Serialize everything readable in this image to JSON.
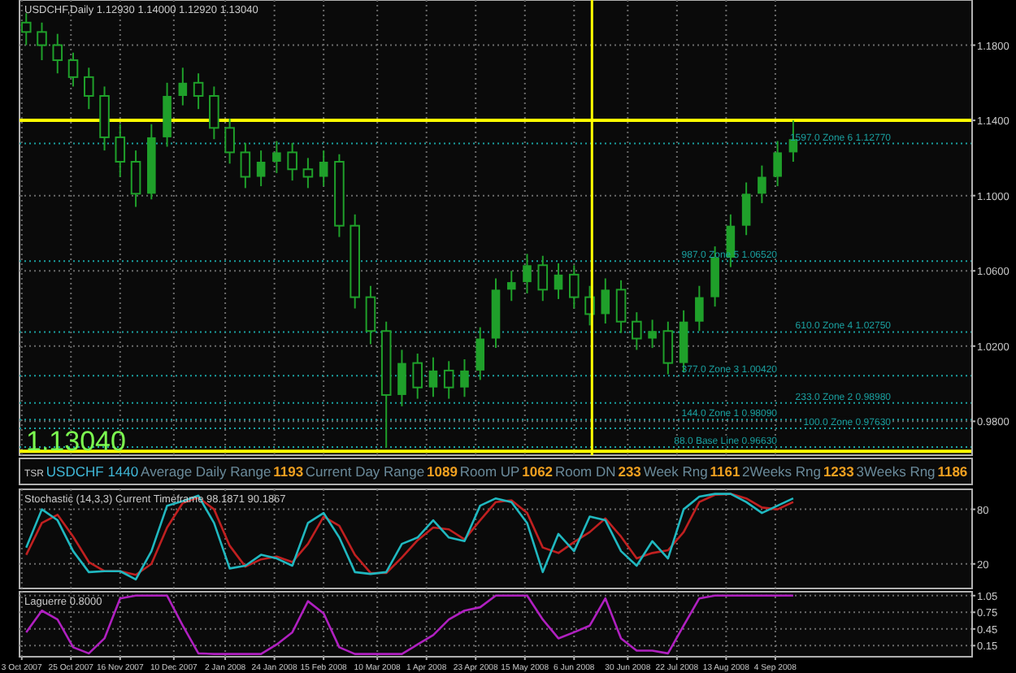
{
  "chart_data": [
    {
      "type": "candlestick",
      "title": "USDCHF,Daily 1.12930 1.14000 1.12920 1.13040",
      "grid": true,
      "tick_labels": "y",
      "color": "#1fa02a",
      "x": [
        "2007-10-05",
        "2007-10-12",
        "2007-10-19",
        "2007-10-26",
        "2007-11-02",
        "2007-11-09",
        "2007-11-16",
        "2007-11-23",
        "2007-11-30",
        "2007-12-07",
        "2007-12-14",
        "2007-12-21",
        "2007-12-28",
        "2008-01-04",
        "2008-01-11",
        "2008-01-18",
        "2008-01-25",
        "2008-02-01",
        "2008-02-08",
        "2008-02-15",
        "2008-02-22",
        "2008-02-29",
        "2008-03-07",
        "2008-03-14",
        "2008-03-21",
        "2008-03-28",
        "2008-04-04",
        "2008-04-11",
        "2008-04-18",
        "2008-04-25",
        "2008-05-02",
        "2008-05-09",
        "2008-05-16",
        "2008-05-23",
        "2008-05-30",
        "2008-06-06",
        "2008-06-13",
        "2008-06-20",
        "2008-06-27",
        "2008-07-04",
        "2008-07-11",
        "2008-07-18",
        "2008-07-25",
        "2008-08-01",
        "2008-08-08",
        "2008-08-15",
        "2008-08-22",
        "2008-08-29",
        "2008-09-05",
        "2008-09-12"
      ],
      "ohlc": [
        [
          1.192,
          1.197,
          1.18,
          1.187
        ],
        [
          1.187,
          1.192,
          1.172,
          1.18
        ],
        [
          1.18,
          1.186,
          1.165,
          1.172
        ],
        [
          1.172,
          1.176,
          1.158,
          1.163
        ],
        [
          1.163,
          1.168,
          1.146,
          1.153
        ],
        [
          1.153,
          1.158,
          1.124,
          1.131
        ],
        [
          1.131,
          1.138,
          1.11,
          1.118
        ],
        [
          1.118,
          1.124,
          1.094,
          1.101
        ],
        [
          1.101,
          1.138,
          1.098,
          1.131
        ],
        [
          1.131,
          1.16,
          1.126,
          1.153
        ],
        [
          1.153,
          1.168,
          1.148,
          1.16
        ],
        [
          1.16,
          1.165,
          1.146,
          1.153
        ],
        [
          1.153,
          1.158,
          1.13,
          1.136
        ],
        [
          1.136,
          1.141,
          1.117,
          1.123
        ],
        [
          1.123,
          1.128,
          1.104,
          1.11
        ],
        [
          1.11,
          1.124,
          1.105,
          1.118
        ],
        [
          1.118,
          1.129,
          1.112,
          1.123
        ],
        [
          1.123,
          1.128,
          1.108,
          1.114
        ],
        [
          1.114,
          1.12,
          1.104,
          1.11
        ],
        [
          1.11,
          1.124,
          1.105,
          1.118
        ],
        [
          1.118,
          1.122,
          1.078,
          1.084
        ],
        [
          1.084,
          1.09,
          1.04,
          1.046
        ],
        [
          1.046,
          1.052,
          1.021,
          1.028
        ],
        [
          1.028,
          1.033,
          0.966,
          0.994
        ],
        [
          0.994,
          1.018,
          0.988,
          1.011
        ],
        [
          1.011,
          1.016,
          0.992,
          0.998
        ],
        [
          0.998,
          1.014,
          0.993,
          1.007
        ],
        [
          1.007,
          1.012,
          0.992,
          0.998
        ],
        [
          0.998,
          1.013,
          0.993,
          1.007
        ],
        [
          1.007,
          1.03,
          1.002,
          1.024
        ],
        [
          1.024,
          1.056,
          1.019,
          1.05
        ],
        [
          1.05,
          1.06,
          1.044,
          1.054
        ],
        [
          1.054,
          1.069,
          1.048,
          1.063
        ],
        [
          1.063,
          1.068,
          1.044,
          1.05
        ],
        [
          1.05,
          1.064,
          1.045,
          1.058
        ],
        [
          1.058,
          1.063,
          1.04,
          1.046
        ],
        [
          1.046,
          1.052,
          1.031,
          1.037
        ],
        [
          1.037,
          1.056,
          1.032,
          1.05
        ],
        [
          1.05,
          1.055,
          1.027,
          1.033
        ],
        [
          1.033,
          1.038,
          1.018,
          1.024
        ],
        [
          1.024,
          1.034,
          1.019,
          1.028
        ],
        [
          1.028,
          1.033,
          1.005,
          1.011
        ],
        [
          1.011,
          1.039,
          1.006,
          1.033
        ],
        [
          1.033,
          1.052,
          1.028,
          1.046
        ],
        [
          1.046,
          1.073,
          1.041,
          1.067
        ],
        [
          1.067,
          1.09,
          1.062,
          1.084
        ],
        [
          1.084,
          1.107,
          1.079,
          1.101
        ],
        [
          1.101,
          1.116,
          1.096,
          1.11
        ],
        [
          1.11,
          1.129,
          1.105,
          1.123
        ],
        [
          1.123,
          1.14,
          1.118,
          1.13
        ]
      ],
      "xlim": [
        "2007-10-02",
        "2008-12-01"
      ],
      "ylim": [
        0.962,
        1.204
      ],
      "yticks": [
        {
          "value": 0.98,
          "label": "0.9800"
        },
        {
          "value": 1.02,
          "label": "1.0200"
        },
        {
          "value": 1.06,
          "label": "1.0600"
        },
        {
          "value": 1.1,
          "label": "1.1000"
        },
        {
          "value": 1.14,
          "label": "1.1400"
        },
        {
          "value": 1.18,
          "label": "1.1800"
        }
      ],
      "ref_lines": [
        {
          "axis": "y",
          "value": 1.1277,
          "label": "1597.0 Zone 6 1.12770",
          "color": "#1aa0a0",
          "line_style": "dotted"
        },
        {
          "axis": "y",
          "value": 1.0652,
          "label": "987.0 Zone 5 1.06520",
          "color": "#1aa0a0",
          "line_style": "dotted"
        },
        {
          "axis": "y",
          "value": 1.0275,
          "label": "610.0 Zone 4 1.02750",
          "color": "#1aa0a0",
          "line_style": "dotted"
        },
        {
          "axis": "y",
          "value": 1.0042,
          "label": "377.0 Zone 3 1.00420",
          "color": "#1aa0a0",
          "line_style": "dotted"
        },
        {
          "axis": "y",
          "value": 0.9898,
          "label": "233.0 Zone 2 0.98980",
          "color": "#1aa0a0",
          "line_style": "dotted"
        },
        {
          "axis": "y",
          "value": 0.9809,
          "label": "144.0 Zone 1 0.98090",
          "color": "#1aa0a0",
          "line_style": "dotted"
        },
        {
          "axis": "y",
          "value": 0.9763,
          "label": "100.0 Zone 0.97630",
          "color": "#1aa0a0",
          "line_style": "dotted"
        },
        {
          "axis": "y",
          "value": 0.9663,
          "label": "88.0 Base Line 0.96630",
          "color": "#1aa0a0",
          "line_style": "dotted"
        },
        {
          "axis": "y",
          "value": 1.14,
          "label": null,
          "color": "#ffff00",
          "line_style": "solid"
        },
        {
          "axis": "y",
          "value": 0.964,
          "label": null,
          "color": "#ffff00",
          "line_style": "solid"
        },
        {
          "axis": "x",
          "value": "2008-06-14",
          "label": null,
          "color": "#ffff00",
          "line_style": "solid"
        }
      ],
      "annotations": [
        "1.13040",
        "TSR",
        "USDCHF 1440",
        "Average Daily Range",
        "1193",
        "Current Day Range",
        "1089",
        "Room UP",
        "1062",
        "Room DN",
        "233",
        "Week Rng",
        "1161",
        "2Weeks Rng",
        "1233",
        "3Weeks Rng",
        "1186"
      ]
    },
    {
      "type": "line",
      "title": "Stochastic (14,3,3) Current Timeframe 98.1871 90.1867",
      "grid": true,
      "tick_labels": "y",
      "line_style": "solid",
      "x": [
        "2007-10-05",
        "2007-10-12",
        "2007-10-19",
        "2007-10-26",
        "2007-11-02",
        "2007-11-09",
        "2007-11-16",
        "2007-11-23",
        "2007-11-30",
        "2007-12-07",
        "2007-12-14",
        "2007-12-21",
        "2007-12-28",
        "2008-01-04",
        "2008-01-11",
        "2008-01-18",
        "2008-01-25",
        "2008-02-01",
        "2008-02-08",
        "2008-02-15",
        "2008-02-22",
        "2008-02-29",
        "2008-03-07",
        "2008-03-14",
        "2008-03-21",
        "2008-03-28",
        "2008-04-04",
        "2008-04-11",
        "2008-04-18",
        "2008-04-25",
        "2008-05-02",
        "2008-05-09",
        "2008-05-16",
        "2008-05-23",
        "2008-05-30",
        "2008-06-06",
        "2008-06-13",
        "2008-06-20",
        "2008-06-27",
        "2008-07-04",
        "2008-07-11",
        "2008-07-18",
        "2008-07-25",
        "2008-08-01",
        "2008-08-08",
        "2008-08-15",
        "2008-08-22",
        "2008-08-29",
        "2008-09-05",
        "2008-09-12"
      ],
      "series": [
        {
          "color": "#c02020",
          "values": [
            30,
            65,
            74,
            50,
            22,
            12,
            12,
            8,
            20,
            60,
            87,
            93,
            80,
            40,
            17,
            25,
            28,
            22,
            42,
            72,
            62,
            30,
            10,
            10,
            27,
            46,
            60,
            58,
            47,
            68,
            88,
            90,
            76,
            38,
            32,
            44,
            55,
            70,
            50,
            26,
            32,
            35,
            55,
            88,
            96,
            97,
            92,
            82,
            80,
            88
          ]
        },
        {
          "color": "#20b8c0",
          "values": [
            38,
            80,
            68,
            34,
            11,
            12,
            12,
            3,
            34,
            84,
            89,
            95,
            65,
            15,
            18,
            30,
            26,
            18,
            65,
            76,
            49,
            11,
            9,
            11,
            42,
            49,
            68,
            49,
            45,
            84,
            92,
            88,
            65,
            11,
            53,
            34,
            72,
            68,
            34,
            18,
            45,
            26,
            80,
            94,
            97,
            97,
            88,
            76,
            84,
            92
          ]
        }
      ],
      "xlim": [
        "2007-10-02",
        "2008-12-01"
      ],
      "ylim": [
        -7,
        102
      ],
      "yticks": [
        20,
        80
      ]
    },
    {
      "type": "line",
      "title": "Laguerre 0.8000",
      "grid": true,
      "line_style": "solid",
      "x": [
        "2007-10-05",
        "2007-10-12",
        "2007-10-19",
        "2007-10-26",
        "2007-11-02",
        "2007-11-09",
        "2007-11-16",
        "2007-11-23",
        "2007-11-30",
        "2007-12-07",
        "2007-12-14",
        "2007-12-21",
        "2007-12-28",
        "2008-01-04",
        "2008-01-11",
        "2008-01-18",
        "2008-01-25",
        "2008-02-01",
        "2008-02-08",
        "2008-02-15",
        "2008-02-22",
        "2008-02-29",
        "2008-03-07",
        "2008-03-14",
        "2008-03-21",
        "2008-03-28",
        "2008-04-04",
        "2008-04-11",
        "2008-04-18",
        "2008-04-25",
        "2008-05-02",
        "2008-05-09",
        "2008-05-16",
        "2008-05-23",
        "2008-05-30",
        "2008-06-06",
        "2008-06-13",
        "2008-06-20",
        "2008-06-27",
        "2008-07-04",
        "2008-07-11",
        "2008-07-18",
        "2008-07-25",
        "2008-08-01",
        "2008-08-08",
        "2008-08-15",
        "2008-08-22",
        "2008-08-29",
        "2008-09-05",
        "2008-09-12"
      ],
      "series": [
        {
          "color": "#b020c0",
          "values": [
            0.39,
            0.78,
            0.62,
            0.12,
            0.01,
            0.28,
            1.0,
            1.05,
            1.05,
            1.05,
            0.51,
            0.01,
            0,
            0,
            0,
            0,
            0.17,
            0.39,
            0.95,
            0.73,
            0.12,
            0,
            0,
            0,
            0,
            0.17,
            0.34,
            0.62,
            0.78,
            0.84,
            1.05,
            1.05,
            1.05,
            0.62,
            0.28,
            0.39,
            0.51,
            1.0,
            0.28,
            0.06,
            0.06,
            0.01,
            0.51,
            1.0,
            1.05,
            1.05,
            1.05,
            1.05,
            1.05,
            1.05
          ]
        }
      ],
      "xlim": [
        "2007-10-02",
        "2008-12-01"
      ],
      "ylim": [
        -0.05,
        1.12
      ],
      "yticks": [
        0.15,
        0.45,
        0.75,
        1.05
      ],
      "xticks": [
        {
          "value": "2007-10-03",
          "label": "3 Oct 2007"
        },
        {
          "value": "2007-10-25",
          "label": "25 Oct 2007"
        },
        {
          "value": "2007-11-16",
          "label": "16 Nov 2007"
        },
        {
          "value": "2007-12-10",
          "label": "10 Dec 2007"
        },
        {
          "value": "2008-01-02",
          "label": "2 Jan 2008"
        },
        {
          "value": "2008-01-24",
          "label": "24 Jan 2008"
        },
        {
          "value": "2008-02-15",
          "label": "15 Feb 2008"
        },
        {
          "value": "2008-03-10",
          "label": "10 Mar 2008"
        },
        {
          "value": "2008-04-01",
          "label": "1 Apr 2008"
        },
        {
          "value": "2008-04-23",
          "label": "23 Apr 2008"
        },
        {
          "value": "2008-05-15",
          "label": "15 May 2008"
        },
        {
          "value": "2008-06-06",
          "label": "6 Jun 2008"
        },
        {
          "value": "2008-06-30",
          "label": "30 Jun 2008"
        },
        {
          "value": "2008-07-22",
          "label": "22 Jul 2008"
        },
        {
          "value": "2008-08-13",
          "label": "13 Aug 2008"
        },
        {
          "value": "2008-09-04",
          "label": "4 Sep 2008"
        }
      ]
    }
  ]
}
